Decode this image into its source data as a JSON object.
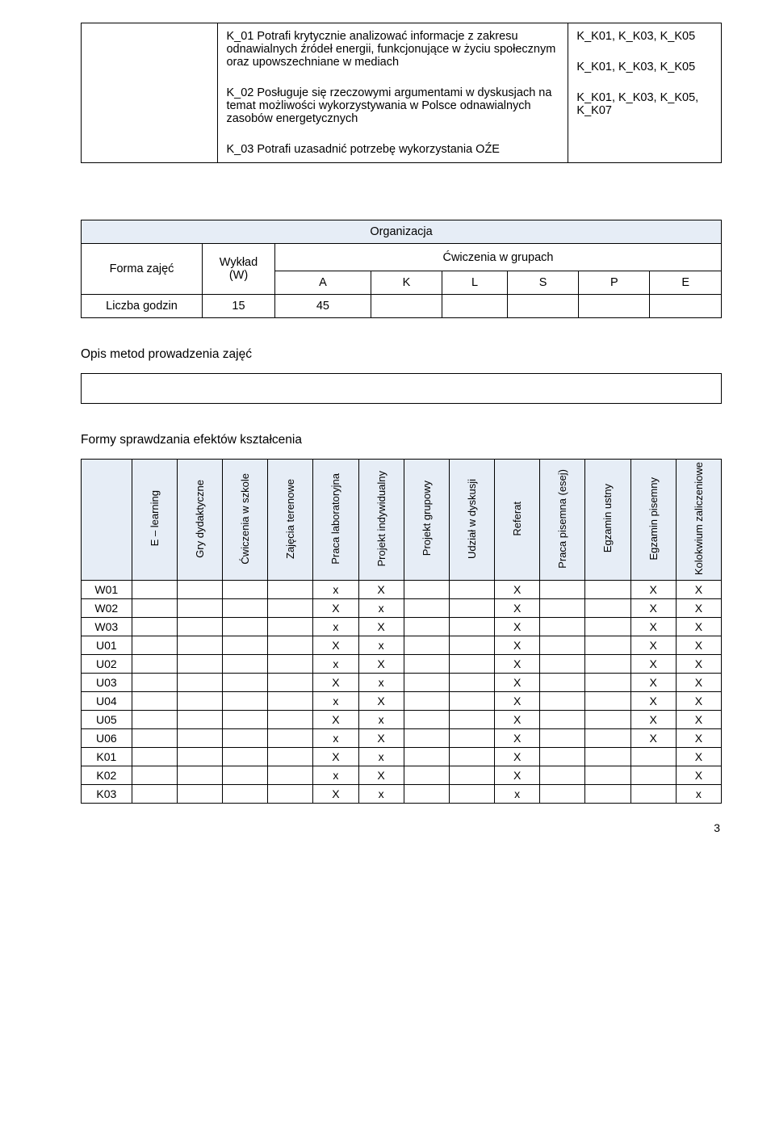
{
  "top_table": {
    "rows": [
      {
        "label": "K_01",
        "text": "Potrafi  krytycznie analizować informacje z zakresu odnawialnych źródeł energii, funkcjonujące w życiu społecznym oraz upowszechniane w mediach",
        "codes": "K_K01, K_K03,  K_K05"
      },
      {
        "label": "K_02",
        "text": "Posługuje się rzeczowymi argumentami w dyskusjach na temat możliwości wykorzystywania w Polsce odnawialnych zasobów energetycznych",
        "codes": "K_K01, K_K03,  K_K05"
      },
      {
        "label": "K_03",
        "text": "Potrafi uzasadnić potrzebę wykorzystania OŹE",
        "codes": "K_K01, K_K03,  K_K05, K_K07"
      }
    ]
  },
  "org": {
    "title": "Organizacja",
    "forma_label": "Forma zajęć",
    "wyklad_label_1": "Wykład",
    "wyklad_label_2": "(W)",
    "cwiczenia_label": "Ćwiczenia w grupach",
    "cols": [
      "A",
      "K",
      "L",
      "S",
      "P",
      "E"
    ],
    "liczba_label": "Liczba godzin",
    "liczba_vals": [
      "15",
      "45",
      "",
      "",
      "",
      "",
      ""
    ]
  },
  "sec1": "Opis metod prowadzenia zajęć",
  "sec2": "Formy sprawdzania efektów kształcenia",
  "ver": {
    "headers": [
      "E – learning",
      "Gry dydaktyczne",
      "Ćwiczenia w szkole",
      "Zajęcia terenowe",
      "Praca laboratoryjna",
      "Projekt indywidualny",
      "Projekt grupowy",
      "Udział w dyskusji",
      "Referat",
      "Praca pisemna (esej)",
      "Egzamin ustny",
      "Egzamin pisemny",
      "Kolokwium zaliczeniowe"
    ],
    "rows": [
      {
        "id": "W01",
        "c": [
          "",
          "",
          "",
          "",
          "x",
          "X",
          "",
          "",
          "X",
          "",
          "",
          "X",
          "X"
        ]
      },
      {
        "id": "W02",
        "c": [
          "",
          "",
          "",
          "",
          "X",
          "x",
          "",
          "",
          "X",
          "",
          "",
          "X",
          "X"
        ]
      },
      {
        "id": "W03",
        "c": [
          "",
          "",
          "",
          "",
          "x",
          "X",
          "",
          "",
          "X",
          "",
          "",
          "X",
          "X"
        ]
      },
      {
        "id": "U01",
        "c": [
          "",
          "",
          "",
          "",
          "X",
          "x",
          "",
          "",
          "X",
          "",
          "",
          "X",
          "X"
        ]
      },
      {
        "id": "U02",
        "c": [
          "",
          "",
          "",
          "",
          "x",
          "X",
          "",
          "",
          "X",
          "",
          "",
          "X",
          "X"
        ]
      },
      {
        "id": "U03",
        "c": [
          "",
          "",
          "",
          "",
          "X",
          "x",
          "",
          "",
          "X",
          "",
          "",
          "X",
          "X"
        ]
      },
      {
        "id": "U04",
        "c": [
          "",
          "",
          "",
          "",
          "x",
          "X",
          "",
          "",
          "X",
          "",
          "",
          "X",
          "X"
        ]
      },
      {
        "id": "U05",
        "c": [
          "",
          "",
          "",
          "",
          "X",
          "x",
          "",
          "",
          "X",
          "",
          "",
          "X",
          "X"
        ]
      },
      {
        "id": "U06",
        "c": [
          "",
          "",
          "",
          "",
          "x",
          "X",
          "",
          "",
          "X",
          "",
          "",
          "X",
          "X"
        ]
      },
      {
        "id": "K01",
        "c": [
          "",
          "",
          "",
          "",
          "X",
          "x",
          "",
          "",
          "X",
          "",
          "",
          "",
          "X"
        ]
      },
      {
        "id": "K02",
        "c": [
          "",
          "",
          "",
          "",
          "x",
          "X",
          "",
          "",
          "X",
          "",
          "",
          "",
          "X"
        ]
      },
      {
        "id": "K03",
        "c": [
          "",
          "",
          "",
          "",
          "X",
          "x",
          "",
          "",
          "x",
          "",
          "",
          "",
          "x"
        ]
      }
    ]
  },
  "page_number": "3"
}
